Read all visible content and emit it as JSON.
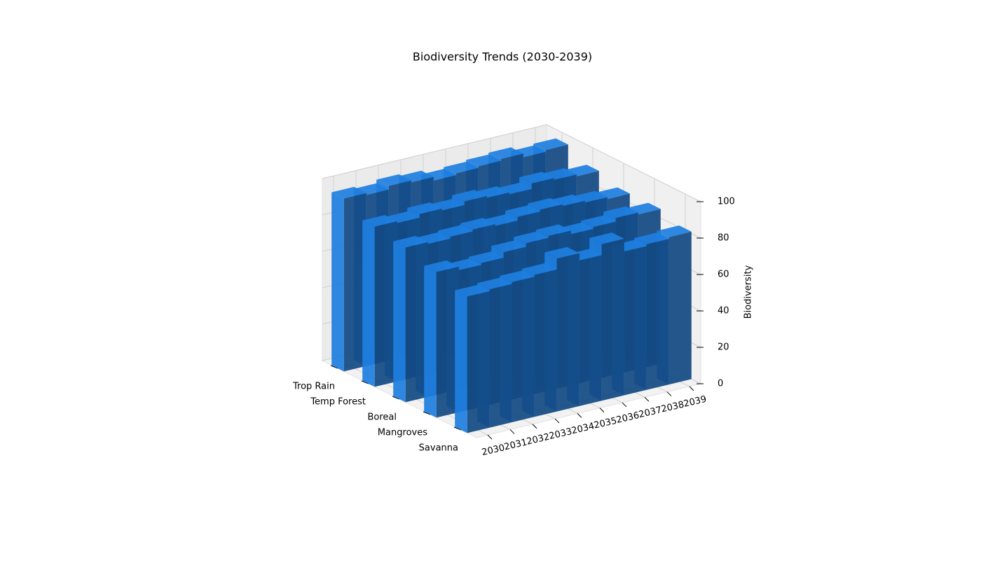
{
  "chart_data": {
    "type": "bar3d",
    "title": "Biodiversity Trends (2030-2039)",
    "zlabel": "Biodiversity",
    "categories": [
      "2030",
      "2031",
      "2032",
      "2033",
      "2034",
      "2035",
      "2036",
      "2037",
      "2038",
      "2039"
    ],
    "series": [
      {
        "name": "Trop Rain",
        "color": "#1e7fe0",
        "values": [
          95,
          94,
          96,
          95,
          93,
          94,
          95,
          96,
          94,
          95
        ]
      },
      {
        "name": "Temp Forest",
        "color": "#1e7fe0",
        "values": [
          88,
          87,
          89,
          88,
          90,
          89,
          88,
          91,
          90,
          89
        ]
      },
      {
        "name": "Boreal",
        "color": "#1e7fe0",
        "values": [
          85,
          84,
          85,
          86,
          85,
          87,
          88,
          87,
          86,
          85
        ]
      },
      {
        "name": "Mangroves",
        "color": "#1e7fe0",
        "values": [
          80,
          78,
          79,
          82,
          84,
          85,
          83,
          84,
          86,
          85
        ]
      },
      {
        "name": "Savanna",
        "color": "#1e7fe0",
        "values": [
          75,
          76,
          77,
          78,
          84,
          80,
          86,
          79,
          80,
          81
        ]
      }
    ],
    "zlim": [
      0,
      100
    ],
    "zticks": [
      0,
      20,
      40,
      60,
      80,
      100
    ],
    "grid": true
  }
}
